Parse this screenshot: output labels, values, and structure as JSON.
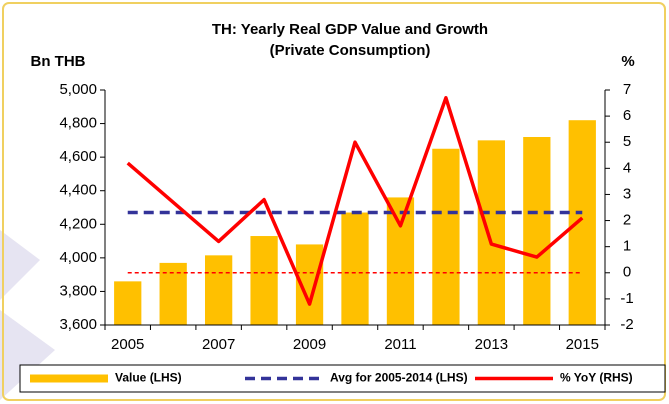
{
  "chart_data": {
    "type": "bar_line",
    "title": "TH: Yearly Real GDP Value and Growth",
    "subtitle": "(Private Consumption)",
    "y_label": "Bn THB",
    "y2_label": "%",
    "categories": [
      "2005",
      null,
      "2007",
      null,
      "2009",
      null,
      "2011",
      null,
      "2013",
      null,
      "2015"
    ],
    "series": [
      {
        "name": "Value (LHS)",
        "kind": "bar",
        "color": "#FFC000",
        "axis": "y",
        "values": [
          3860,
          3970,
          4015,
          4130,
          4080,
          4270,
          4360,
          4650,
          4700,
          4720,
          4820
        ]
      },
      {
        "name": "Avg for 2005-2014 (LHS)",
        "kind": "reference",
        "color": "#333399",
        "axis": "y",
        "dashed": true,
        "value": 4270
      },
      {
        "name": "% YoY (RHS)",
        "kind": "line",
        "color": "#FF0000",
        "axis": "y2",
        "values": [
          4.2,
          2.7,
          1.2,
          2.8,
          -1.2,
          5.0,
          1.8,
          6.7,
          1.1,
          0.6,
          2.1
        ]
      }
    ],
    "ylim": [
      3600,
      5000
    ],
    "yticks": [
      {
        "value": 3600,
        "label": "3,600"
      },
      {
        "value": 3800,
        "label": "3,800"
      },
      {
        "value": 4000,
        "label": "4,000"
      },
      {
        "value": 4200,
        "label": "4,200"
      },
      {
        "value": 4400,
        "label": "4,400"
      },
      {
        "value": 4600,
        "label": "4,600"
      },
      {
        "value": 4800,
        "label": "4,800"
      },
      {
        "value": 5000,
        "label": "5,000"
      }
    ],
    "y2lim": [
      -2,
      7
    ],
    "y2ticks": [
      -2,
      -1,
      0,
      1,
      2,
      3,
      4,
      5,
      6,
      7
    ],
    "zero_line": {
      "color": "#FF0000",
      "dashed": true
    },
    "legend": "bottom"
  }
}
